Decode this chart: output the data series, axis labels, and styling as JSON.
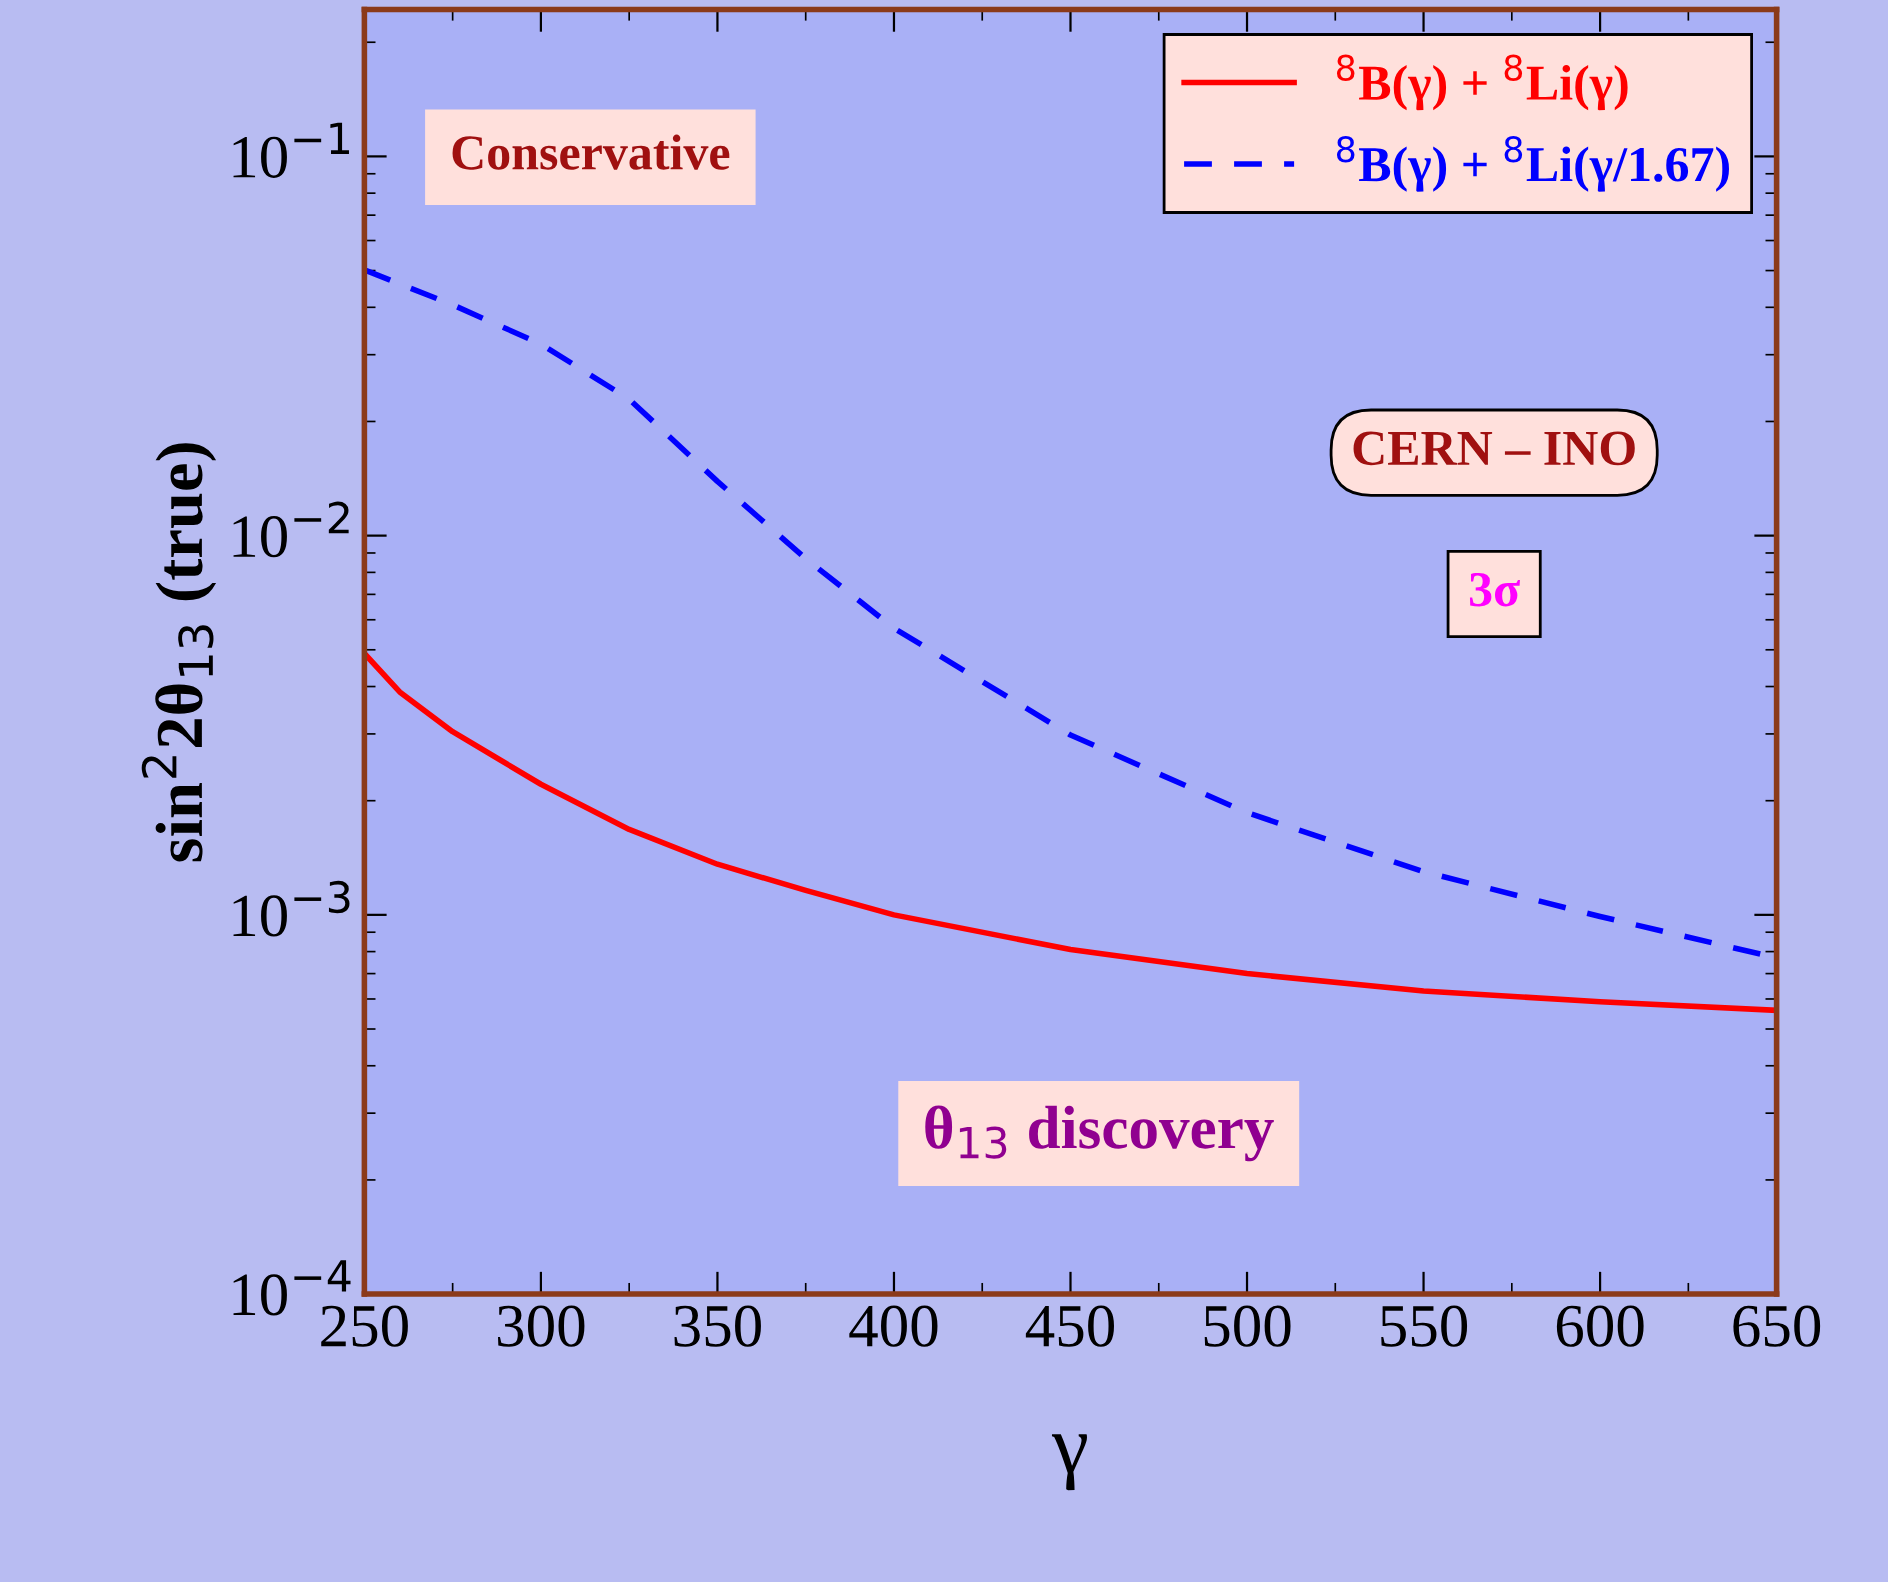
{
  "chart_data": {
    "type": "line",
    "xlabel": "γ",
    "ylabel": "sin$^{2}$2θ$_{13}$ (true)",
    "log": "y",
    "xlim": [
      250,
      650
    ],
    "xticks": [
      250,
      300,
      350,
      400,
      450,
      500,
      550,
      600,
      650
    ],
    "ylim": [
      0.0001,
      0.244
    ],
    "yticks": [
      {
        "value": 0.0001,
        "label": "10$^{−4}$"
      },
      {
        "value": 0.001,
        "label": "10$^{−3}$"
      },
      {
        "value": 0.01,
        "label": "10$^{−2}$"
      },
      {
        "value": 0.1,
        "label": "10$^{−1}$"
      }
    ],
    "grid": false,
    "legend": "top right",
    "marker": "none",
    "series": [
      {
        "name": "$^{8}$B(γ) + $^{8}$Li(γ)",
        "color": "#ff0000",
        "line_style": "solid",
        "x": [
          250,
          260,
          275,
          300,
          325,
          350,
          375,
          400,
          450,
          500,
          550,
          600,
          650
        ],
        "values": [
          0.00489,
          0.00387,
          0.00304,
          0.00221,
          0.00168,
          0.00136,
          0.00116,
          0.001,
          0.00081,
          0.0007,
          0.00063,
          0.00059,
          0.00056
        ]
      },
      {
        "name": "$^{8}$B(γ) + $^{8}$Li(γ/1.67)",
        "color": "#0000ff",
        "line_style": "dashed",
        "x": [
          250,
          275,
          300,
          325,
          350,
          375,
          400,
          450,
          500,
          550,
          600,
          650
        ],
        "values": [
          0.0502,
          0.0406,
          0.032,
          0.0229,
          0.0139,
          0.0087,
          0.0057,
          0.00298,
          0.00186,
          0.0013,
          0.00099,
          0.00077
        ]
      }
    ],
    "annotations": [
      "Conservative",
      "CERN – INO",
      "3σ",
      "θ$_{13}$ discovery"
    ]
  }
}
